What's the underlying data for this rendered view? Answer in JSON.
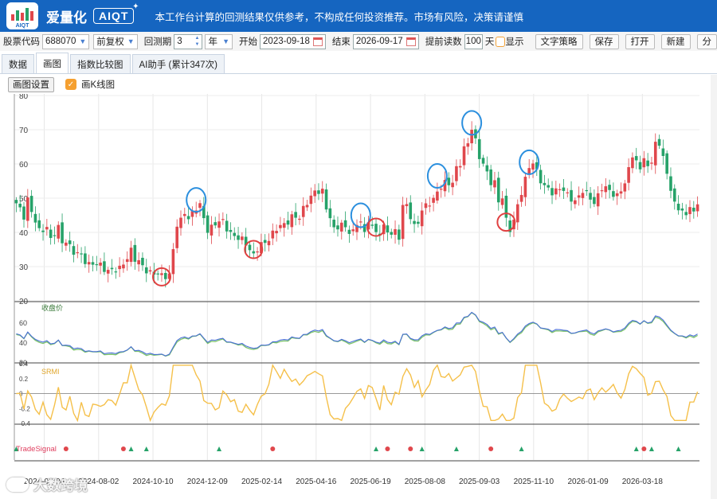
{
  "app": {
    "name": "爱量化",
    "badge": "AIQT",
    "logo_text": "AIQT",
    "notice": "本工作台计算的回测结果仅供参考，不构成任何投资推荐。市场有风险，决策请谨慎"
  },
  "toolbar": {
    "stock_label": "股票代码",
    "stock_value": "688070",
    "adjust_value": "前复权",
    "period_label": "回测期",
    "period_value": "3",
    "unit_value": "年",
    "start_label": "开始",
    "start_value": "2023-09-18",
    "end_label": "结束",
    "end_value": "2026-09-17",
    "preread_label": "提前读数",
    "preread_value": "100",
    "day_label": "天",
    "show_label": "显示",
    "buttons": [
      "文字策略",
      "保存",
      "打开",
      "新建",
      "分"
    ]
  },
  "tabs": [
    "数据",
    "画图",
    "指数比较图",
    "AI助手 (累计347次)"
  ],
  "active_tab": 1,
  "subbar": {
    "settings_label": "画图设置",
    "kline_label": "画K线图",
    "kline_checked": true
  },
  "watermark": "大数跨境",
  "colors": {
    "up": "#e0474c",
    "down": "#26a269",
    "ma": "#4a6fd8",
    "ma2": "#7cc36a",
    "srmi": "#f5c04a",
    "circle_blue": "#2b8fde",
    "circle_red": "#e04040",
    "brand": "#1565c0"
  },
  "chart_data": {
    "type": "candlestick",
    "x_ticks": [
      "2024-06-04",
      "2024-08-02",
      "2024-10-10",
      "2024-12-09",
      "2025-02-14",
      "2025-04-16",
      "2025-06-19",
      "2025-08-08",
      "2025-09-03",
      "2025-11-10",
      "2026-01-09",
      "2026-03-18"
    ],
    "price_panel": {
      "yticks": [
        80,
        70,
        60,
        50,
        40,
        30,
        20
      ],
      "ylim": [
        20,
        80
      ]
    },
    "ma_panel": {
      "label": "收盘价",
      "yticks": [
        60,
        40,
        20
      ],
      "ylim": [
        20,
        80
      ]
    },
    "srmi_panel": {
      "label": "SRMI",
      "yticks": [
        0.4,
        0.2,
        0,
        -0.2,
        -0.4
      ],
      "ylim": [
        -0.4,
        0.4
      ]
    },
    "signal_panel": {
      "label": "TradeSignal"
    },
    "price_path": [
      [
        0,
        48
      ],
      [
        2,
        45
      ],
      [
        3,
        50
      ],
      [
        4,
        46
      ],
      [
        6,
        40
      ],
      [
        8,
        42
      ],
      [
        9,
        38
      ],
      [
        11,
        41
      ],
      [
        12,
        37
      ],
      [
        13,
        38
      ],
      [
        15,
        34
      ],
      [
        17,
        33
      ],
      [
        19,
        31
      ],
      [
        21,
        30.5
      ],
      [
        23,
        29.5
      ],
      [
        25,
        29
      ],
      [
        27,
        29
      ],
      [
        28,
        31
      ],
      [
        30,
        35
      ],
      [
        31,
        32
      ],
      [
        33,
        30
      ],
      [
        35,
        28.5
      ],
      [
        37,
        27.5
      ],
      [
        38,
        27
      ],
      [
        40,
        28
      ],
      [
        41,
        35
      ],
      [
        42,
        42
      ],
      [
        43,
        43
      ],
      [
        44,
        46
      ],
      [
        45,
        44.5
      ],
      [
        47,
        47
      ],
      [
        48,
        47.5
      ],
      [
        49,
        44
      ],
      [
        50,
        41
      ],
      [
        52,
        42.5
      ],
      [
        54,
        43
      ],
      [
        56,
        40
      ],
      [
        58,
        38
      ],
      [
        60,
        37
      ],
      [
        62,
        33.5
      ],
      [
        63,
        35
      ],
      [
        65,
        37
      ],
      [
        67,
        40
      ],
      [
        68,
        41
      ],
      [
        70,
        42
      ],
      [
        72,
        45
      ],
      [
        74,
        44
      ],
      [
        76,
        49
      ],
      [
        77,
        51
      ],
      [
        78,
        52
      ],
      [
        80,
        51.5
      ],
      [
        81,
        47
      ],
      [
        82,
        45
      ],
      [
        83,
        41
      ],
      [
        85,
        42
      ],
      [
        86,
        41
      ],
      [
        88,
        40.5
      ],
      [
        89,
        42.5
      ],
      [
        90,
        43
      ],
      [
        91,
        39
      ],
      [
        92,
        44
      ],
      [
        93,
        42
      ],
      [
        94,
        40
      ],
      [
        95,
        39.5
      ],
      [
        96,
        41
      ],
      [
        98,
        40
      ],
      [
        99,
        40.5
      ],
      [
        100,
        38.5
      ],
      [
        101,
        47
      ],
      [
        102,
        48
      ],
      [
        103,
        45
      ],
      [
        104,
        42
      ],
      [
        105,
        43
      ],
      [
        106,
        46
      ],
      [
        108,
        49
      ],
      [
        109,
        50
      ],
      [
        110,
        52
      ],
      [
        111,
        53
      ],
      [
        112,
        54
      ],
      [
        114,
        55
      ],
      [
        115,
        59
      ],
      [
        116,
        60
      ],
      [
        117,
        64
      ],
      [
        118,
        66
      ],
      [
        119,
        71
      ],
      [
        120,
        67
      ],
      [
        121,
        62
      ],
      [
        123,
        57
      ],
      [
        124,
        55
      ],
      [
        125,
        55
      ],
      [
        126,
        49
      ],
      [
        127,
        50
      ],
      [
        128,
        43
      ],
      [
        129,
        41
      ],
      [
        130,
        44
      ],
      [
        131,
        48
      ],
      [
        133,
        55
      ],
      [
        134,
        59
      ],
      [
        135,
        61
      ],
      [
        136,
        58
      ],
      [
        137,
        55
      ],
      [
        138,
        53
      ],
      [
        140,
        52
      ],
      [
        142,
        53
      ],
      [
        143,
        52
      ],
      [
        144,
        50.5
      ],
      [
        146,
        49.5
      ],
      [
        148,
        52
      ],
      [
        150,
        50
      ],
      [
        151,
        49
      ],
      [
        152,
        51
      ],
      [
        153,
        53
      ],
      [
        155,
        52
      ],
      [
        157,
        51
      ],
      [
        159,
        54
      ],
      [
        160,
        58
      ],
      [
        161,
        63
      ],
      [
        162,
        61
      ],
      [
        163,
        58.5
      ],
      [
        164,
        62
      ],
      [
        165,
        58
      ],
      [
        166,
        61
      ],
      [
        167,
        67
      ],
      [
        168,
        65
      ],
      [
        169,
        63
      ],
      [
        170,
        56
      ],
      [
        171,
        52
      ],
      [
        172,
        50
      ],
      [
        173,
        46
      ],
      [
        174,
        47
      ],
      [
        175,
        44.5
      ],
      [
        176,
        46.5
      ],
      [
        178,
        48
      ]
    ],
    "circles": [
      {
        "i": 38,
        "y": 27,
        "color": "red"
      },
      {
        "i": 47,
        "y": 49.5,
        "color": "blue"
      },
      {
        "i": 62,
        "y": 35,
        "color": "red"
      },
      {
        "i": 90,
        "y": 45,
        "color": "blue"
      },
      {
        "i": 94,
        "y": 41.5,
        "color": "red"
      },
      {
        "i": 110,
        "y": 56.5,
        "color": "blue"
      },
      {
        "i": 119,
        "y": 72,
        "color": "blue"
      },
      {
        "i": 128,
        "y": 43,
        "color": "red"
      },
      {
        "i": 134,
        "y": 60.5,
        "color": "blue"
      }
    ],
    "signals": [
      {
        "i": 0,
        "color": "green"
      },
      {
        "i": 13,
        "color": "red"
      },
      {
        "i": 28,
        "color": "red"
      },
      {
        "i": 30,
        "color": "green"
      },
      {
        "i": 34,
        "color": "green"
      },
      {
        "i": 53,
        "color": "green"
      },
      {
        "i": 67,
        "color": "red"
      },
      {
        "i": 94,
        "color": "green"
      },
      {
        "i": 97,
        "color": "red"
      },
      {
        "i": 103,
        "color": "red"
      },
      {
        "i": 106,
        "color": "green"
      },
      {
        "i": 115,
        "color": "green"
      },
      {
        "i": 124,
        "color": "red"
      },
      {
        "i": 132,
        "color": "green"
      },
      {
        "i": 162,
        "color": "green"
      },
      {
        "i": 164,
        "color": "red"
      },
      {
        "i": 166,
        "color": "green"
      },
      {
        "i": 173,
        "color": "green"
      }
    ]
  }
}
